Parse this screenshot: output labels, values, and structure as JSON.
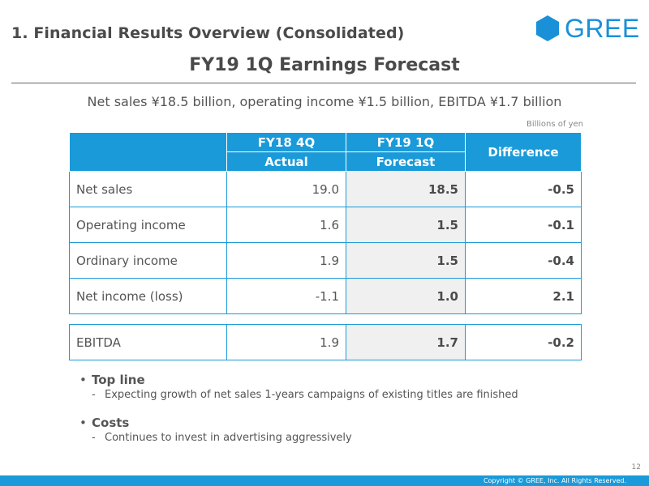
{
  "header": {
    "section_title": "1. Financial Results Overview (Consolidated)",
    "logo_text": "GREE",
    "brand_color": "#1a90d8"
  },
  "title": "FY19 1Q Earnings Forecast",
  "summary": "Net sales ¥18.5 billion, operating income ¥1.5 billion, EBITDA ¥1.7 billion",
  "unit_note": "Billions of yen",
  "table": {
    "col1_top": "FY18 4Q",
    "col1_bottom": "Actual",
    "col2_top": "FY19 1Q",
    "col2_bottom": "Forecast",
    "col3": "Difference",
    "rows": [
      {
        "label": "Net sales",
        "actual": "19.0",
        "forecast": "18.5",
        "diff": "-0.5"
      },
      {
        "label": "Operating income",
        "actual": "1.6",
        "forecast": "1.5",
        "diff": "-0.1"
      },
      {
        "label": "Ordinary income",
        "actual": "1.9",
        "forecast": "1.5",
        "diff": "-0.4"
      },
      {
        "label": "Net income (loss)",
        "actual": "-1.1",
        "forecast": "1.0",
        "diff": "2.1"
      }
    ],
    "ebitda": {
      "label": "EBITDA",
      "actual": "1.9",
      "forecast": "1.7",
      "diff": "-0.2"
    }
  },
  "bullets": [
    {
      "heading": "Top line",
      "detail": "Expecting growth of net sales 1-years campaigns of existing titles are finished"
    },
    {
      "heading": "Costs",
      "detail": "Continues to invest in advertising aggressively"
    }
  ],
  "bullet_char": "•",
  "dash_char": "-",
  "page_number": "12",
  "copyright": "Copyright © GREE, Inc. All Rights Reserved.",
  "accent_color": "#1a9ad9"
}
